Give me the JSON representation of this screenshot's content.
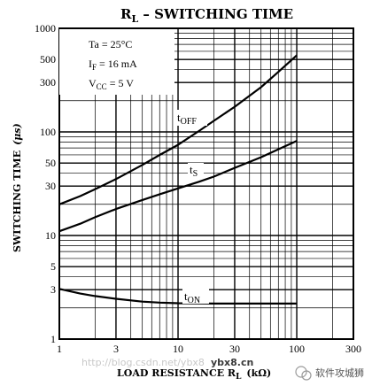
{
  "chart_data": {
    "type": "line",
    "title_main": "R",
    "title_sub": "L",
    "title_rest": " – SWITCHING TIME",
    "xlabel_main": "LOAD RESISTANCE R",
    "xlabel_sub": "L",
    "xlabel_unit": "(kΩ)",
    "ylabel_main": "SWITCHING TIME",
    "ylabel_unit": "(μs)",
    "xscale": "log",
    "yscale": "log",
    "xlim": [
      1,
      300
    ],
    "ylim": [
      1,
      1000
    ],
    "grid": true,
    "x_ticks": [
      1,
      3,
      10,
      30,
      100,
      300
    ],
    "x_tick_labels": [
      "1",
      "3",
      "10",
      "30",
      "100",
      "300"
    ],
    "y_ticks": [
      1,
      3,
      5,
      10,
      30,
      50,
      100,
      300,
      500,
      1000
    ],
    "y_tick_labels": [
      "1",
      "3",
      "5",
      "10",
      "30",
      "50",
      "100",
      "300",
      "500",
      "1000"
    ],
    "conditions": [
      {
        "main": "Ta = 25°C",
        "sub": ""
      },
      {
        "main": "I",
        "sub": "F",
        "rest": " = 16 mA"
      },
      {
        "main": "V",
        "sub": "CC",
        "rest": " = 5 V"
      }
    ],
    "series": [
      {
        "name_main": "t",
        "name_sub": "OFF",
        "x": [
          1,
          1.5,
          2,
          3,
          5,
          7,
          10,
          15,
          20,
          30,
          50,
          70,
          100
        ],
        "y": [
          20,
          24,
          28,
          35,
          48,
          60,
          75,
          102,
          128,
          175,
          270,
          380,
          550
        ]
      },
      {
        "name_main": "t",
        "name_sub": "S",
        "x": [
          1,
          1.5,
          2,
          3,
          5,
          7,
          10,
          15,
          20,
          30,
          50,
          70,
          100
        ],
        "y": [
          11,
          13,
          15,
          18,
          22,
          25,
          28.5,
          33,
          37,
          45,
          57,
          68,
          82
        ]
      },
      {
        "name_main": "t",
        "name_sub": "ON",
        "x": [
          1,
          1.5,
          2,
          3,
          5,
          7,
          10,
          20,
          50,
          100
        ],
        "y": [
          3.05,
          2.75,
          2.6,
          2.45,
          2.3,
          2.25,
          2.22,
          2.2,
          2.2,
          2.2
        ]
      }
    ]
  },
  "watermark": {
    "left_text": "http://blog.csdn.net/ybx8",
    "mid_text": "ybx8.cn",
    "right_text": "软件攻城狮"
  }
}
